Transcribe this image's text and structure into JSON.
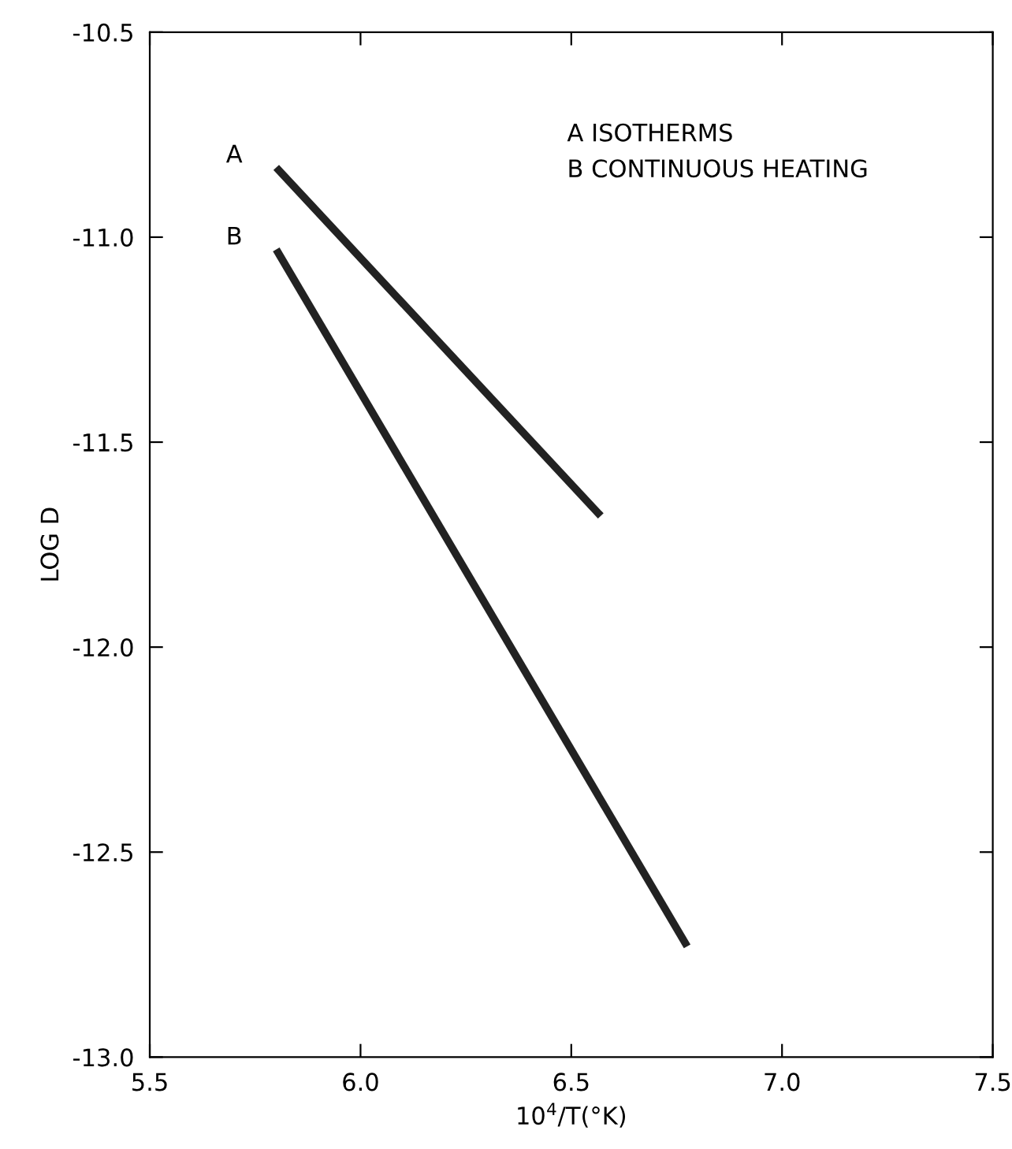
{
  "chart_data": {
    "type": "line",
    "xlabel": "10$^{4}$/T(°K)",
    "ylabel": "LOG D",
    "xlim": [
      5.5,
      7.5
    ],
    "xticks": [
      5.5,
      {
        "value": 6,
        "label": "6.0"
      },
      6.5,
      {
        "value": 7,
        "label": "7.0"
      },
      7.5
    ],
    "ylim": [
      -13.0,
      -10.5
    ],
    "yticks": [
      {
        "value": -13,
        "label": "-13.0"
      },
      -12.5,
      {
        "value": -12,
        "label": "-12.0"
      },
      -11.5,
      {
        "value": -11,
        "label": "-11.0"
      },
      -10.5
    ],
    "grid": false,
    "legend": false,
    "marker": "none",
    "line_style": "solid",
    "series": [
      {
        "name": "A",
        "color": "#222222",
        "x": [
          5.8,
          6.57
        ],
        "values": [
          -10.83,
          -11.68
        ]
      },
      {
        "name": "B",
        "color": "#222222",
        "x": [
          5.8,
          6.775
        ],
        "values": [
          -11.03,
          -12.73
        ]
      }
    ],
    "annotations": [
      "A ISOTHERMS",
      "B CONTINUOUS HEATING"
    ]
  }
}
